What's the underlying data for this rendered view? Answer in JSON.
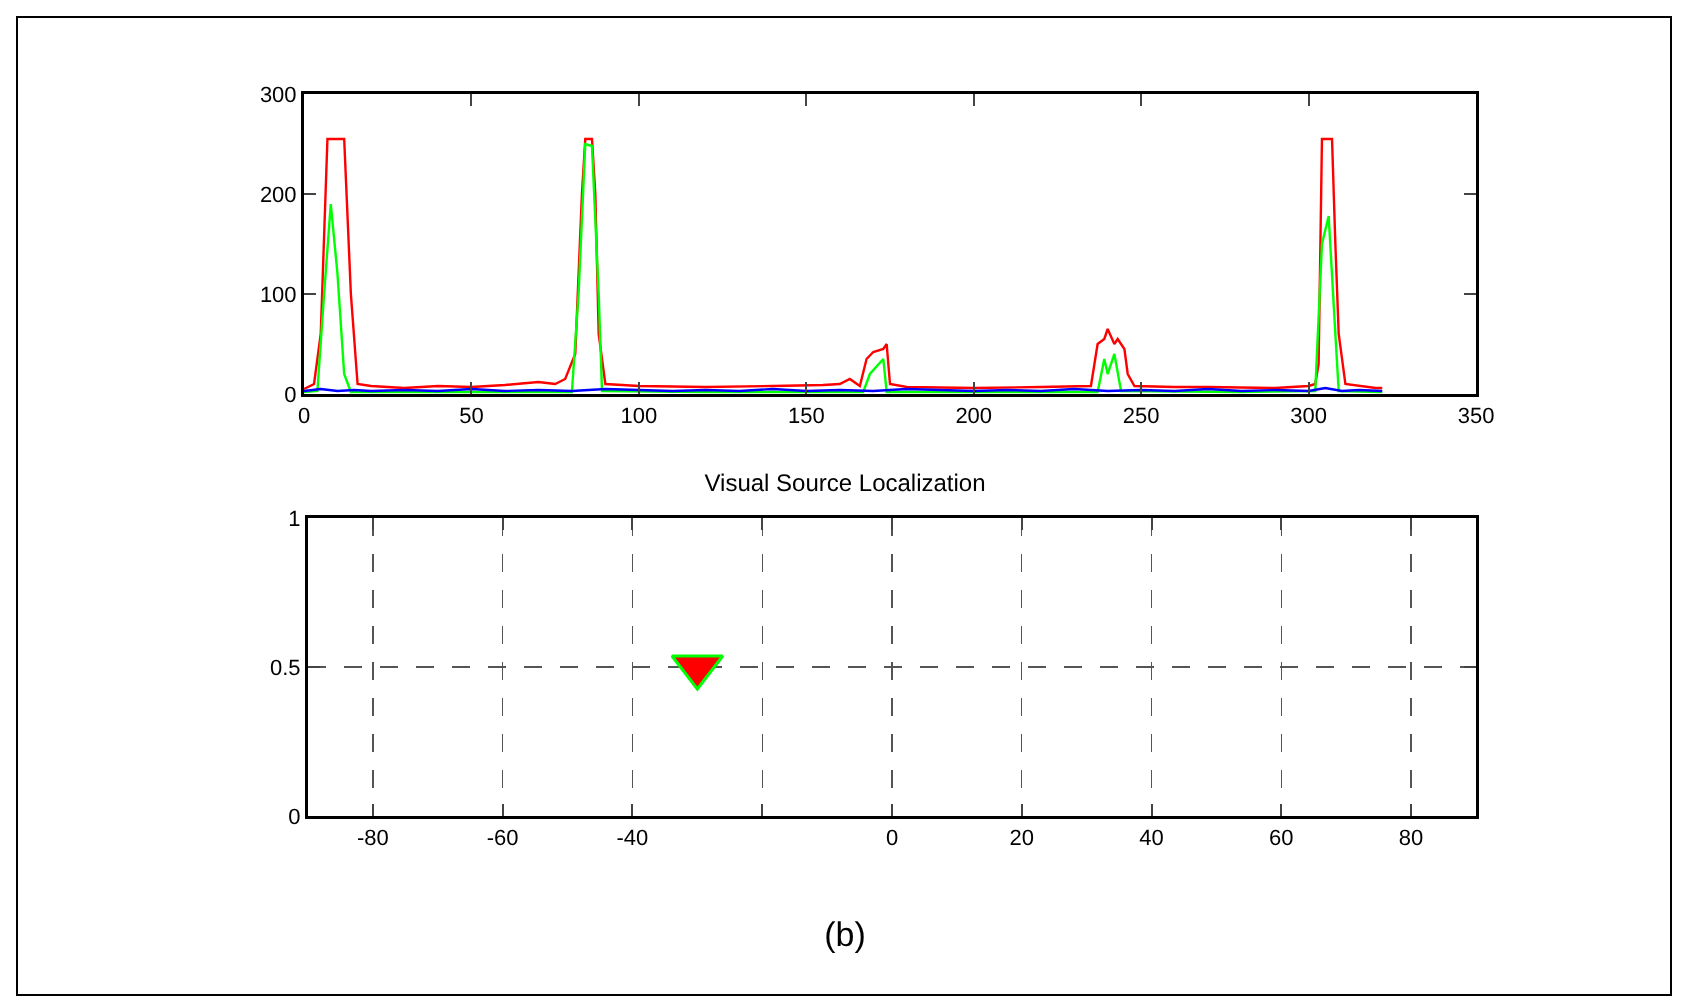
{
  "chart_data": [
    {
      "type": "line",
      "xlim": [
        0,
        350
      ],
      "xticks": [
        0,
        50,
        100,
        150,
        200,
        250,
        300,
        350
      ],
      "ylim": [
        0,
        300
      ],
      "yticks": [
        0,
        100,
        200,
        300
      ],
      "grid": false,
      "legend": false,
      "marker": "none",
      "line_style": "solid",
      "series": [
        {
          "color": "#ff0000",
          "x": [
            0,
            3,
            5,
            7,
            12,
            14,
            16,
            20,
            30,
            40,
            50,
            60,
            70,
            75,
            78,
            81,
            83,
            84,
            86,
            87,
            88,
            90,
            95,
            100,
            120,
            140,
            155,
            160,
            163,
            166,
            168,
            170,
            173,
            174,
            175,
            180,
            200,
            220,
            235,
            237,
            239,
            240,
            242,
            243,
            245,
            246,
            248,
            260,
            270,
            290,
            300,
            302,
            303,
            304,
            307,
            308,
            309,
            311,
            320,
            322
          ],
          "values": [
            5,
            10,
            60,
            255,
            255,
            100,
            10,
            8,
            6,
            8,
            7,
            9,
            12,
            10,
            15,
            40,
            200,
            255,
            255,
            200,
            60,
            10,
            9,
            8,
            7,
            8,
            9,
            10,
            15,
            8,
            35,
            42,
            45,
            50,
            10,
            7,
            6,
            7,
            8,
            50,
            55,
            65,
            50,
            55,
            45,
            20,
            8,
            7,
            7,
            6,
            8,
            10,
            30,
            255,
            255,
            150,
            60,
            10,
            6,
            6
          ]
        },
        {
          "color": "#00ff00",
          "x": [
            0,
            4,
            6,
            8,
            10,
            12,
            14,
            40,
            80,
            82,
            84,
            86,
            88,
            89,
            120,
            167,
            169,
            173,
            174,
            200,
            237,
            239,
            240,
            242,
            244,
            280,
            302,
            304,
            306,
            308,
            309,
            322
          ],
          "values": [
            2,
            3,
            100,
            190,
            120,
            20,
            2,
            2,
            2,
            100,
            250,
            248,
            100,
            3,
            2,
            2,
            20,
            35,
            2,
            2,
            2,
            35,
            20,
            40,
            3,
            2,
            3,
            150,
            178,
            60,
            3,
            2
          ]
        },
        {
          "color": "#0000ff",
          "x": [
            0,
            5,
            10,
            15,
            20,
            30,
            40,
            50,
            60,
            70,
            80,
            90,
            100,
            110,
            120,
            130,
            140,
            150,
            160,
            170,
            180,
            190,
            200,
            210,
            220,
            230,
            240,
            250,
            260,
            270,
            280,
            290,
            300,
            305,
            310,
            315,
            322
          ],
          "values": [
            3,
            5,
            3,
            4,
            3,
            4,
            3,
            5,
            3,
            4,
            3,
            5,
            4,
            3,
            4,
            3,
            5,
            3,
            4,
            3,
            5,
            4,
            3,
            4,
            3,
            5,
            3,
            4,
            3,
            5,
            3,
            4,
            3,
            6,
            3,
            4,
            3
          ]
        }
      ]
    },
    {
      "type": "scatter",
      "title": "Visual Source Localization",
      "xlim": [
        -90,
        90
      ],
      "xticks": [
        -80,
        -60,
        -40,
        {
          "value": -20,
          "label": null
        },
        0,
        20,
        40,
        60,
        80
      ],
      "ylim": [
        0,
        1
      ],
      "yticks": [
        0,
        0.5,
        1
      ],
      "grid": true,
      "legend": false,
      "marker": "triangle",
      "series": [
        {
          "color": "#ff0000",
          "x": [
            -30
          ],
          "values": [
            0.5
          ]
        }
      ],
      "annotations": [
        "(b)"
      ]
    }
  ]
}
